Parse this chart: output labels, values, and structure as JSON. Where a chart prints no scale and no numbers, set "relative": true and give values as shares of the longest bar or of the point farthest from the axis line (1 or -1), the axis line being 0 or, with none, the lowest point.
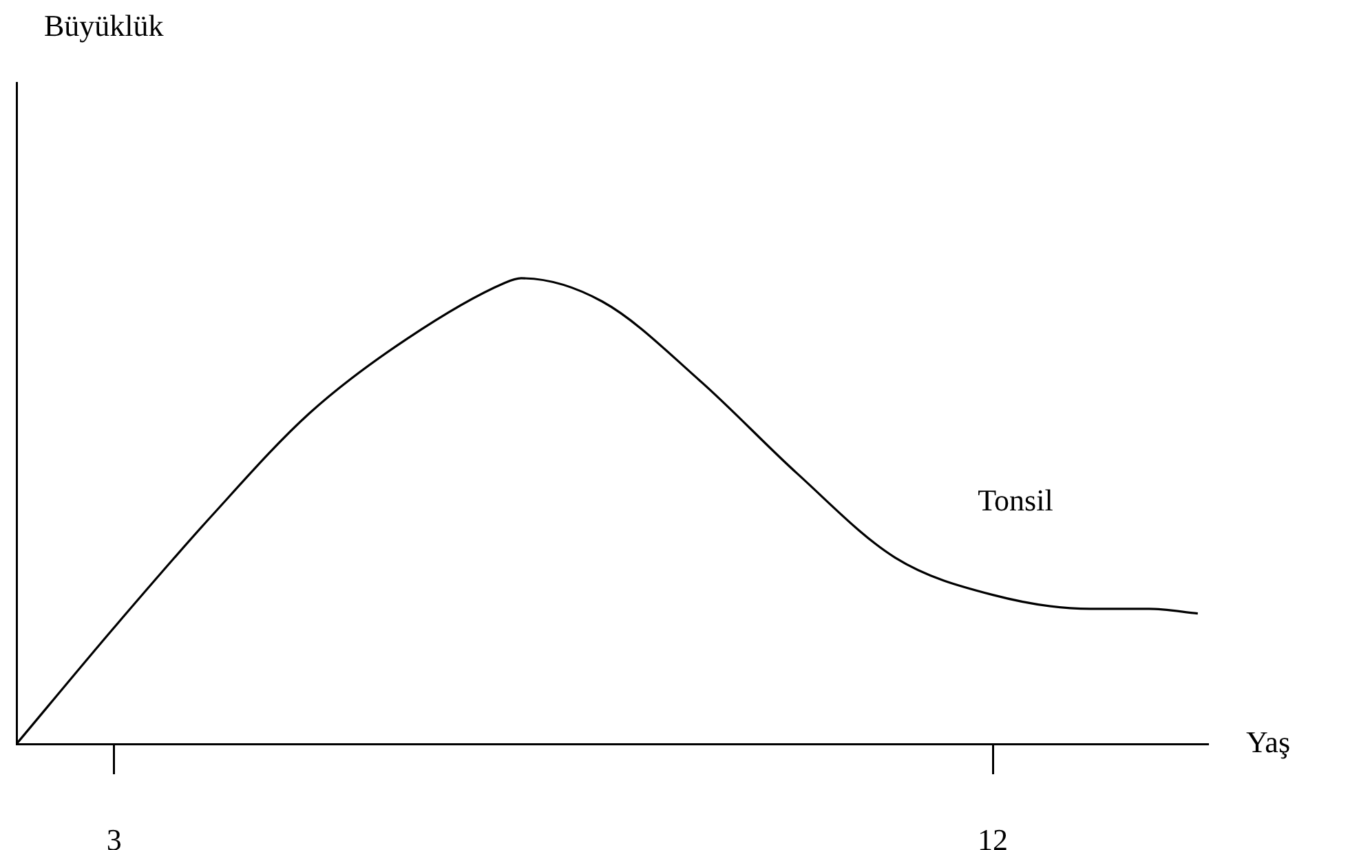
{
  "chart_data": {
    "type": "line",
    "xlabel": "Yaş",
    "annotations": [
      "Büyüklük"
    ],
    "relative": true,
    "xlim": [
      2,
      14.2
    ],
    "xticks": [
      3,
      12
    ],
    "grid": false,
    "legend": false,
    "marker": "none",
    "line_style": "solid",
    "series": [
      {
        "name": "Tonsil",
        "color": "#000000",
        "x": [
          2,
          3,
          4,
          5,
          6,
          7,
          7.17,
          8,
          9,
          10,
          11,
          12,
          13,
          13.6,
          14.1
        ],
        "values": [
          0,
          0.25,
          0.49,
          0.71,
          0.87,
          0.99,
          1,
          0.95,
          0.78,
          0.58,
          0.4,
          0.32,
          0.29,
          0.29,
          0.28
        ]
      }
    ]
  }
}
